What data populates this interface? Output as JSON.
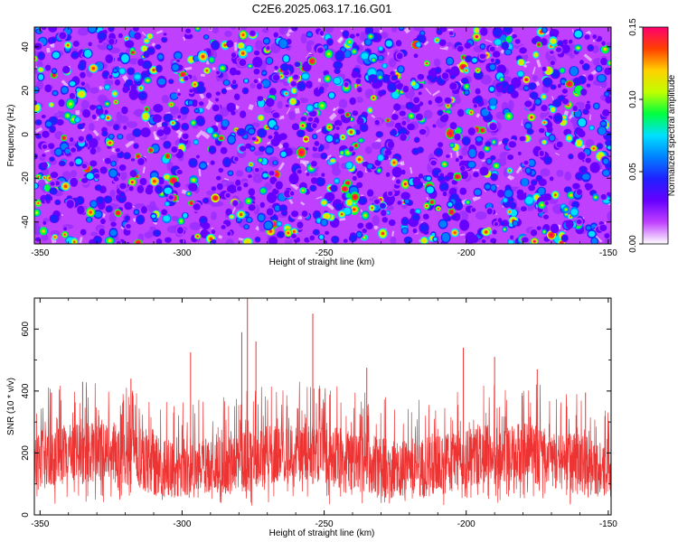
{
  "title": "C2E6.2025.063.17.16.G01",
  "chart_data": [
    {
      "type": "heatmap",
      "xlabel": "Height of straight line (km)",
      "ylabel": "Frequency (Hz)",
      "xlim": [
        -352,
        -149
      ],
      "ylim": [
        -50,
        49
      ],
      "xticks": [
        -350,
        -300,
        -250,
        -200,
        -150
      ],
      "yticks": [
        -40,
        -20,
        0,
        20,
        40
      ],
      "xtick_labels": [
        "-350",
        "-300",
        "-250",
        "-200",
        "-150"
      ],
      "ytick_labels": [
        "-40",
        "-20",
        "0",
        "20",
        "40"
      ],
      "colorbar": {
        "label": "Normalized spectral amplitude",
        "range": [
          0,
          0.15
        ],
        "ticks": [
          0,
          0.05,
          0.1,
          0.15
        ],
        "tick_labels": [
          "0.00",
          "0.05",
          "0.10",
          "0.15"
        ],
        "colormap": [
          "#ffffff",
          "#c040ff",
          "#6600ff",
          "#2020ff",
          "#0080ff",
          "#00e0ff",
          "#00ff40",
          "#c0ff00",
          "#ffd000",
          "#ff4000",
          "#ff0070"
        ]
      },
      "background_level": 0.02,
      "blob_level_range": [
        0.03,
        0.14
      ],
      "grid": false
    },
    {
      "type": "line",
      "xlabel": "Height of straight line (km)",
      "ylabel": "SNR (10 * v/v)",
      "xlim": [
        -352,
        -149
      ],
      "ylim": [
        0,
        700
      ],
      "xticks": [
        -350,
        -300,
        -250,
        -200,
        -150
      ],
      "yticks": [
        0,
        200,
        400,
        600
      ],
      "xtick_labels": [
        "-350",
        "-300",
        "-250",
        "-200",
        "-150"
      ],
      "ytick_labels": [
        "0",
        "200",
        "400",
        "600"
      ],
      "series_color": "#ee3333",
      "typical_band": [
        100,
        250
      ],
      "peaks": [
        {
          "x": -346,
          "y": 395
        },
        {
          "x": -335,
          "y": 430
        },
        {
          "x": -318,
          "y": 440
        },
        {
          "x": -297,
          "y": 525
        },
        {
          "x": -279,
          "y": 590
        },
        {
          "x": -277,
          "y": 700
        },
        {
          "x": -274,
          "y": 560
        },
        {
          "x": -254,
          "y": 650
        },
        {
          "x": -235,
          "y": 475
        },
        {
          "x": -201,
          "y": 540
        },
        {
          "x": -190,
          "y": 510
        },
        {
          "x": -175,
          "y": 470
        },
        {
          "x": -158,
          "y": 395
        }
      ],
      "grid": false
    }
  ]
}
